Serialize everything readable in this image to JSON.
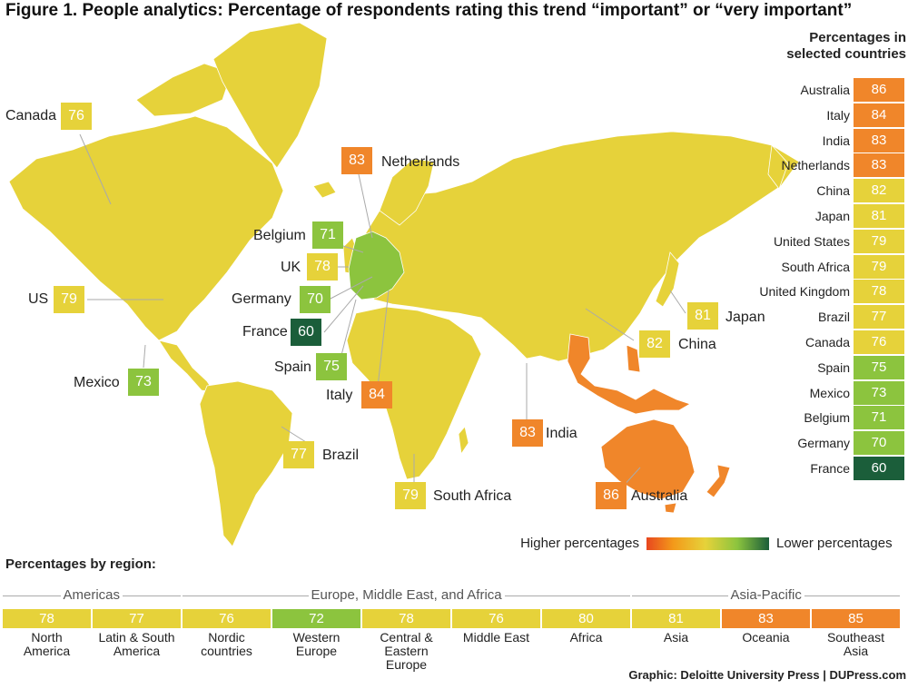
{
  "title": "Figure 1. People analytics: Percentage of respondents rating this trend “important” or “very important”",
  "colors": {
    "yellow": "#e6d23a",
    "orange": "#f0862a",
    "light_green": "#8cc43e",
    "dark_green": "#1b5e3a",
    "map_fill": "#e6d23a"
  },
  "map_labels": [
    {
      "id": "canada",
      "name": "Canada",
      "value": 76,
      "color": "#e6d23a"
    },
    {
      "id": "netherlands",
      "name": "Netherlands",
      "value": 83,
      "color": "#f0862a"
    },
    {
      "id": "belgium",
      "name": "Belgium",
      "value": 71,
      "color": "#8cc43e"
    },
    {
      "id": "uk",
      "name": "UK",
      "value": 78,
      "color": "#e6d23a"
    },
    {
      "id": "us",
      "name": "US",
      "value": 79,
      "color": "#e6d23a"
    },
    {
      "id": "germany",
      "name": "Germany",
      "value": 70,
      "color": "#8cc43e"
    },
    {
      "id": "france",
      "name": "France",
      "value": 60,
      "color": "#1b5e3a"
    },
    {
      "id": "spain",
      "name": "Spain",
      "value": 75,
      "color": "#8cc43e"
    },
    {
      "id": "mexico",
      "name": "Mexico",
      "value": 73,
      "color": "#8cc43e"
    },
    {
      "id": "italy",
      "name": "Italy",
      "value": 84,
      "color": "#f0862a"
    },
    {
      "id": "japan",
      "name": "Japan",
      "value": 81,
      "color": "#e6d23a"
    },
    {
      "id": "china",
      "name": "China",
      "value": 82,
      "color": "#e6d23a"
    },
    {
      "id": "india",
      "name": "India",
      "value": 83,
      "color": "#f0862a"
    },
    {
      "id": "brazil",
      "name": "Brazil",
      "value": 77,
      "color": "#e6d23a"
    },
    {
      "id": "south_africa",
      "name": "South Africa",
      "value": 79,
      "color": "#e6d23a"
    },
    {
      "id": "australia",
      "name": "Australia",
      "value": 86,
      "color": "#f0862a"
    }
  ],
  "side_panel": {
    "header_line1": "Percentages in",
    "header_line2": "selected countries"
  },
  "chart_data": [
    {
      "type": "bar",
      "title": "Percentages in selected countries",
      "categories": [
        "Australia",
        "Italy",
        "India",
        "Netherlands",
        "China",
        "Japan",
        "United States",
        "South Africa",
        "United Kingdom",
        "Brazil",
        "Canada",
        "Spain",
        "Mexico",
        "Belgium",
        "Germany",
        "France"
      ],
      "values": [
        86,
        84,
        83,
        83,
        82,
        81,
        79,
        79,
        78,
        77,
        76,
        75,
        73,
        71,
        70,
        60
      ],
      "colors": [
        "#f0862a",
        "#f0862a",
        "#f0862a",
        "#f0862a",
        "#e6d23a",
        "#e6d23a",
        "#e6d23a",
        "#e6d23a",
        "#e6d23a",
        "#e6d23a",
        "#e6d23a",
        "#8cc43e",
        "#8cc43e",
        "#8cc43e",
        "#8cc43e",
        "#1b5e3a"
      ]
    },
    {
      "type": "table",
      "title": "Percentages by region:",
      "groups": [
        {
          "name": "Americas",
          "regions": [
            {
              "name_line1": "North",
              "name_line2": "America",
              "value": 78,
              "color": "#e6d23a"
            },
            {
              "name_line1": "Latin & South",
              "name_line2": "America",
              "value": 77,
              "color": "#e6d23a"
            }
          ]
        },
        {
          "name": "Europe, Middle East, and Africa",
          "regions": [
            {
              "name_line1": "Nordic",
              "name_line2": "countries",
              "value": 76,
              "color": "#e6d23a"
            },
            {
              "name_line1": "Western",
              "name_line2": "Europe",
              "value": 72,
              "color": "#8cc43e"
            },
            {
              "name_line1": "Central &",
              "name_line2": "Eastern Europe",
              "value": 78,
              "color": "#e6d23a"
            },
            {
              "name_line1": "Middle East",
              "name_line2": "",
              "value": 76,
              "color": "#e6d23a"
            },
            {
              "name_line1": "Africa",
              "name_line2": "",
              "value": 80,
              "color": "#e6d23a"
            }
          ]
        },
        {
          "name": "Asia-Pacific",
          "regions": [
            {
              "name_line1": "Asia",
              "name_line2": "",
              "value": 81,
              "color": "#e6d23a"
            },
            {
              "name_line1": "Oceania",
              "name_line2": "",
              "value": 83,
              "color": "#f0862a"
            },
            {
              "name_line1": "Southeast",
              "name_line2": "Asia",
              "value": 85,
              "color": "#f0862a"
            }
          ]
        }
      ]
    }
  ],
  "legend": {
    "high": "Higher percentages",
    "low": "Lower percentages"
  },
  "credit": "Graphic: Deloitte University Press  |  DUPress.com"
}
